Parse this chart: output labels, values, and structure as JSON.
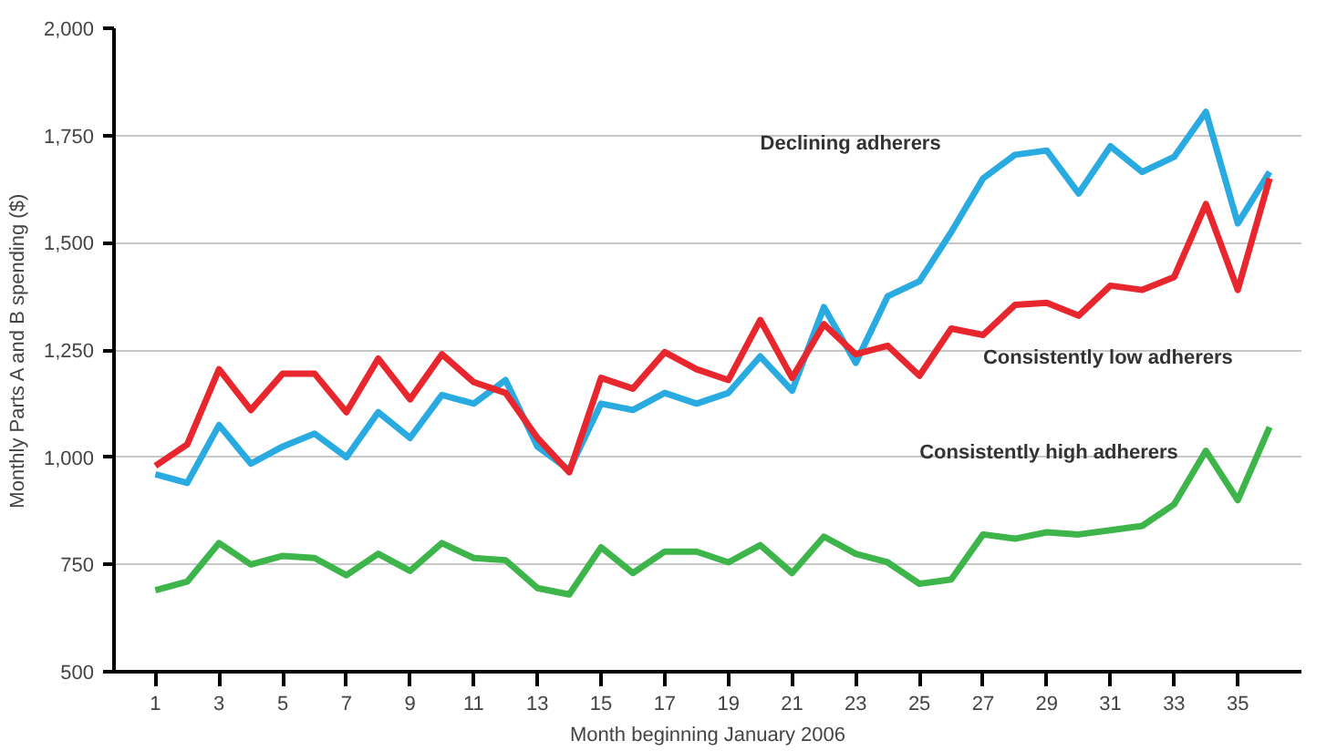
{
  "chart_data": {
    "type": "line",
    "xlabel": "Month beginning January 2006",
    "ylabel": "Monthly Parts A and B spending ($)",
    "x": [
      1,
      2,
      3,
      4,
      5,
      6,
      7,
      8,
      9,
      10,
      11,
      12,
      13,
      14,
      15,
      16,
      17,
      18,
      19,
      20,
      21,
      22,
      23,
      24,
      25,
      26,
      27,
      28,
      29,
      30,
      31,
      32,
      33,
      34,
      35,
      36
    ],
    "series": [
      {
        "name": "Declining adherers",
        "color": "#29abe2",
        "values": [
          960,
          940,
          1075,
          985,
          1025,
          1055,
          1000,
          1105,
          1045,
          1145,
          1125,
          1180,
          1025,
          970,
          1125,
          1110,
          1150,
          1125,
          1150,
          1235,
          1155,
          1350,
          1220,
          1375,
          1410,
          1525,
          1650,
          1705,
          1715,
          1615,
          1725,
          1665,
          1700,
          1805,
          1545,
          1665
        ]
      },
      {
        "name": "Consistently low adherers",
        "color": "#e8262d",
        "values": [
          980,
          1030,
          1205,
          1110,
          1195,
          1195,
          1105,
          1230,
          1135,
          1240,
          1175,
          1150,
          1045,
          965,
          1185,
          1160,
          1245,
          1205,
          1180,
          1320,
          1185,
          1310,
          1240,
          1260,
          1190,
          1300,
          1285,
          1355,
          1360,
          1330,
          1400,
          1390,
          1420,
          1590,
          1390,
          1650
        ]
      },
      {
        "name": "Consistently high adherers",
        "color": "#3db54a",
        "values": [
          690,
          710,
          800,
          750,
          770,
          765,
          725,
          775,
          735,
          800,
          765,
          760,
          695,
          680,
          790,
          730,
          780,
          780,
          755,
          795,
          730,
          815,
          775,
          755,
          705,
          715,
          820,
          810,
          825,
          820,
          830,
          840,
          890,
          1015,
          900,
          1070
        ]
      }
    ],
    "xlim": [
      -0.3,
      37
    ],
    "xticks": [
      1,
      3,
      5,
      7,
      9,
      11,
      13,
      15,
      17,
      19,
      21,
      23,
      25,
      27,
      29,
      31,
      33,
      35
    ],
    "ylim": [
      500,
      2000
    ],
    "yticks": [
      {
        "value": 500,
        "label": "500"
      },
      {
        "value": 750,
        "label": "750"
      },
      {
        "value": 1000,
        "label": "1,000"
      },
      {
        "value": 1250,
        "label": "1,250"
      },
      {
        "value": 1500,
        "label": "1,500"
      },
      {
        "value": 1750,
        "label": "1,750"
      },
      {
        "value": 2000,
        "label": "2,000"
      }
    ],
    "grid": "y",
    "line_style": "solid"
  }
}
